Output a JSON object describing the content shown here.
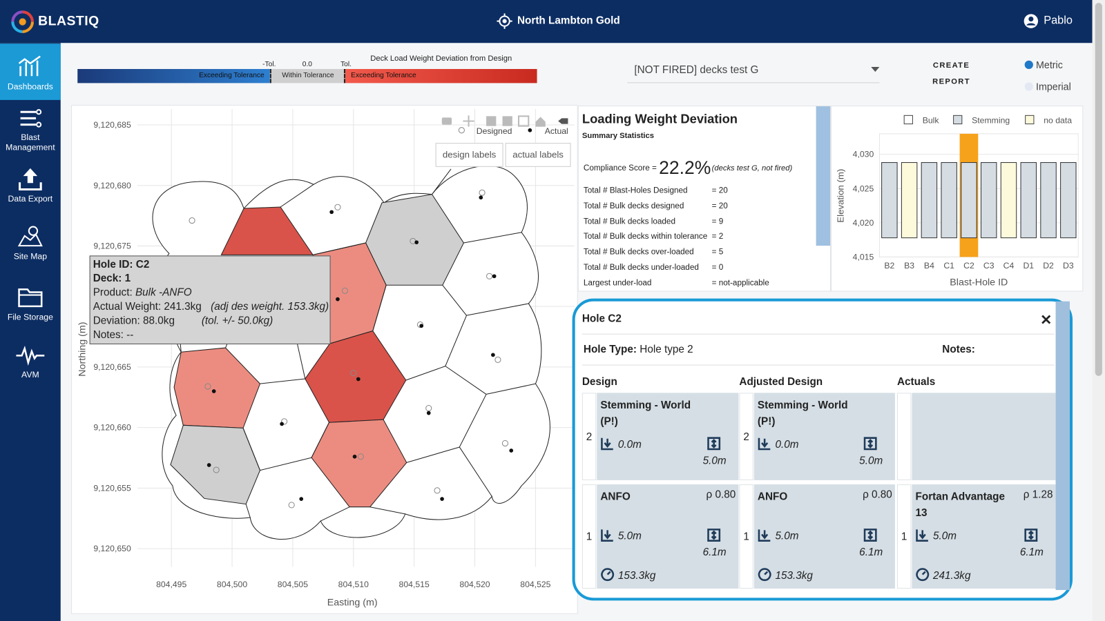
{
  "header": {
    "logo": "BLASTIQ",
    "site": "North Lambton Gold",
    "user": "Pablo"
  },
  "sidebar": {
    "items": [
      "Dashboards",
      "Blast Management",
      "Data Export",
      "Site Map",
      "File Storage",
      "AVM"
    ],
    "active": 0
  },
  "legend_bar": {
    "title": "Deck Load Weight Deviation from Design",
    "ticks": [
      "-Tol.",
      "0.0",
      "Tol."
    ],
    "segments": [
      "Exceeding Tolerance",
      "Within Tolerance",
      "Exceeding Tolerance"
    ]
  },
  "selector": {
    "value": "[NOT FIRED] decks test G"
  },
  "create_report": "CREATE REPORT",
  "units": {
    "options": [
      "Metric",
      "Imperial"
    ],
    "selected": 0
  },
  "map_chart": {
    "type": "scatter",
    "xlabel": "Easting (m)",
    "ylabel": "Northing (m)",
    "grid": true,
    "xlim": [
      804492.2,
      804528.2
    ],
    "ylim": [
      9120648.5,
      9120686.3
    ],
    "xticks": [
      {
        "value": 804495,
        "label": "804,495"
      },
      {
        "value": 804500,
        "label": "804,500"
      },
      {
        "value": 804505,
        "label": "804,505"
      },
      {
        "value": 804510,
        "label": "804,510"
      },
      {
        "value": 804515,
        "label": "804,515"
      },
      {
        "value": 804520,
        "label": "804,520"
      },
      {
        "value": 804525,
        "label": "804,525"
      }
    ],
    "yticks": [
      {
        "value": 9120650,
        "label": "9,120,650"
      },
      {
        "value": 9120655,
        "label": "9,120,655"
      },
      {
        "value": 9120660,
        "label": "9,120,660"
      },
      {
        "value": 9120665,
        "label": "9,120,665"
      },
      {
        "value": 9120670,
        "label": "9,120,670"
      },
      {
        "value": 9120675,
        "label": "9,120,675"
      },
      {
        "value": 9120680,
        "label": "9,120,680"
      },
      {
        "value": 9120685,
        "label": "9,120,685"
      }
    ],
    "series": [
      {
        "name": "Designed",
        "marker": "open",
        "color": "#888888",
        "x": [
          804496.7,
          804508.7,
          804514.9,
          804520.6,
          804521.2,
          804509.3,
          804515.5,
          804521.9,
          804498.0,
          804510.0,
          804516.2,
          804504.3,
          804522.5,
          804498.7,
          804510.6,
          804516.9,
          804504.9
        ],
        "y": [
          9120677.1,
          9120678.2,
          9120675.4,
          9120679.4,
          9120672.5,
          9120671.3,
          9120668.5,
          9120665.6,
          9120663.4,
          9120664.5,
          9120661.6,
          9120660.5,
          9120658.7,
          9120656.5,
          9120657.6,
          9120654.8,
          9120653.6
        ]
      },
      {
        "name": "Actual",
        "marker": "filled",
        "color": "#111111",
        "x": [
          null,
          804508.2,
          804515.2,
          804520.5,
          804521.6,
          804508.7,
          804515.6,
          804521.5,
          804498.5,
          804510.4,
          804516.2,
          804504.1,
          804523.0,
          804498.1,
          804510.1,
          804517.3,
          804505.7
        ],
        "y": [
          null,
          9120677.8,
          9120675.3,
          9120679.0,
          9120672.5,
          9120670.6,
          9120668.4,
          9120666.0,
          9120663.0,
          9120664.0,
          9120661.2,
          9120660.3,
          9120658.1,
          9120656.9,
          9120657.6,
          9120654.1,
          9120654.1
        ]
      }
    ],
    "label_buttons": [
      "design labels",
      "actual labels"
    ],
    "tooltip": {
      "hole_id": "Hole ID: C2",
      "deck": "Deck: 1",
      "product_label": "Product:",
      "product": "Bulk -ANFO",
      "actual_weight": "Actual Weight: 241.3kg",
      "adj_weight": "(adj des weight. 153.3kg)",
      "deviation": "Deviation: 88.0kg",
      "tolerance": "(tol. +/- 50.0kg)",
      "notes": "Notes: --"
    }
  },
  "summary": {
    "title": "Loading Weight Deviation",
    "subtitle": "Summary Statistics",
    "score_label": "Compliance Score =",
    "score": "22.2%",
    "score_note": "(decks test G, not fired)",
    "stats": [
      [
        "Total # Blast-Holes Designed",
        "= 20"
      ],
      [
        "Total # Bulk decks designed",
        "= 20"
      ],
      [
        "Total # Bulk decks loaded",
        "= 9"
      ],
      [
        "Total # Bulk decks within tolerance",
        "= 2"
      ],
      [
        "Total # Bulk decks over-loaded",
        "= 5"
      ],
      [
        "Total # Bulk decks under-loaded",
        "= 0"
      ],
      [
        "Largest under-load",
        "= not-applicable"
      ]
    ]
  },
  "elevation_chart": {
    "type": "bar",
    "ylabel": "Elevation (m)",
    "xlabel": "Blast-Hole ID",
    "categories": [
      "B2",
      "B3",
      "B4",
      "C1",
      "C2",
      "C3",
      "C4",
      "D1",
      "D2",
      "D3"
    ],
    "ylim": [
      4015,
      4033
    ],
    "yticks": [
      {
        "value": 4015,
        "label": "4,015"
      },
      {
        "value": 4020,
        "label": "4,020"
      },
      {
        "value": 4025,
        "label": "4,025"
      },
      {
        "value": 4030,
        "label": "4,030"
      }
    ],
    "bottoms": [
      4017.8,
      4017.8,
      4017.8,
      4017.8,
      4017.8,
      4017.8,
      4017.8,
      4017.8,
      4017.8,
      4017.8
    ],
    "series": [
      {
        "name": "Bulk",
        "color": "#ffffff",
        "values": [
          null,
          null,
          null,
          null,
          null,
          null,
          null,
          null,
          null,
          null
        ]
      },
      {
        "name": "Stemming",
        "color": "#d5dde3",
        "values": [
          4028.8,
          null,
          4028.8,
          4028.8,
          4028.8,
          4028.8,
          null,
          4028.8,
          4028.8,
          4028.8
        ]
      },
      {
        "name": "no data",
        "color": "#fdfadc",
        "values": [
          null,
          4028.8,
          null,
          null,
          null,
          null,
          4028.8,
          null,
          null,
          null
        ]
      }
    ],
    "highlight_index": 4,
    "highlight_color": "#f7a21b"
  },
  "hole_panel": {
    "title": "Hole C2",
    "hole_type_label": "Hole Type:",
    "hole_type": "Hole type 2",
    "notes_label": "Notes:",
    "columns": [
      "Design",
      "Adjusted Design",
      "Actuals"
    ],
    "rows": [
      [
        {
          "deck": "2",
          "name": "Stemming - World (P!)",
          "depth": "0.0m",
          "length": "5.0m"
        },
        {
          "deck": "2",
          "name": "Stemming - World (P!)",
          "depth": "0.0m",
          "length": "5.0m"
        },
        null
      ],
      [
        {
          "deck": "1",
          "name": "ANFO",
          "density": "ρ 0.80",
          "depth": "5.0m",
          "length": "6.1m",
          "weight": "153.3kg"
        },
        {
          "deck": "1",
          "name": "ANFO",
          "density": "ρ 0.80",
          "depth": "5.0m",
          "length": "6.1m",
          "weight": "153.3kg"
        },
        {
          "deck": "1",
          "name": "Fortan Advantage 13",
          "density": "ρ 1.28",
          "depth": "5.0m",
          "length": "6.1m",
          "weight": "241.3kg"
        }
      ]
    ]
  }
}
